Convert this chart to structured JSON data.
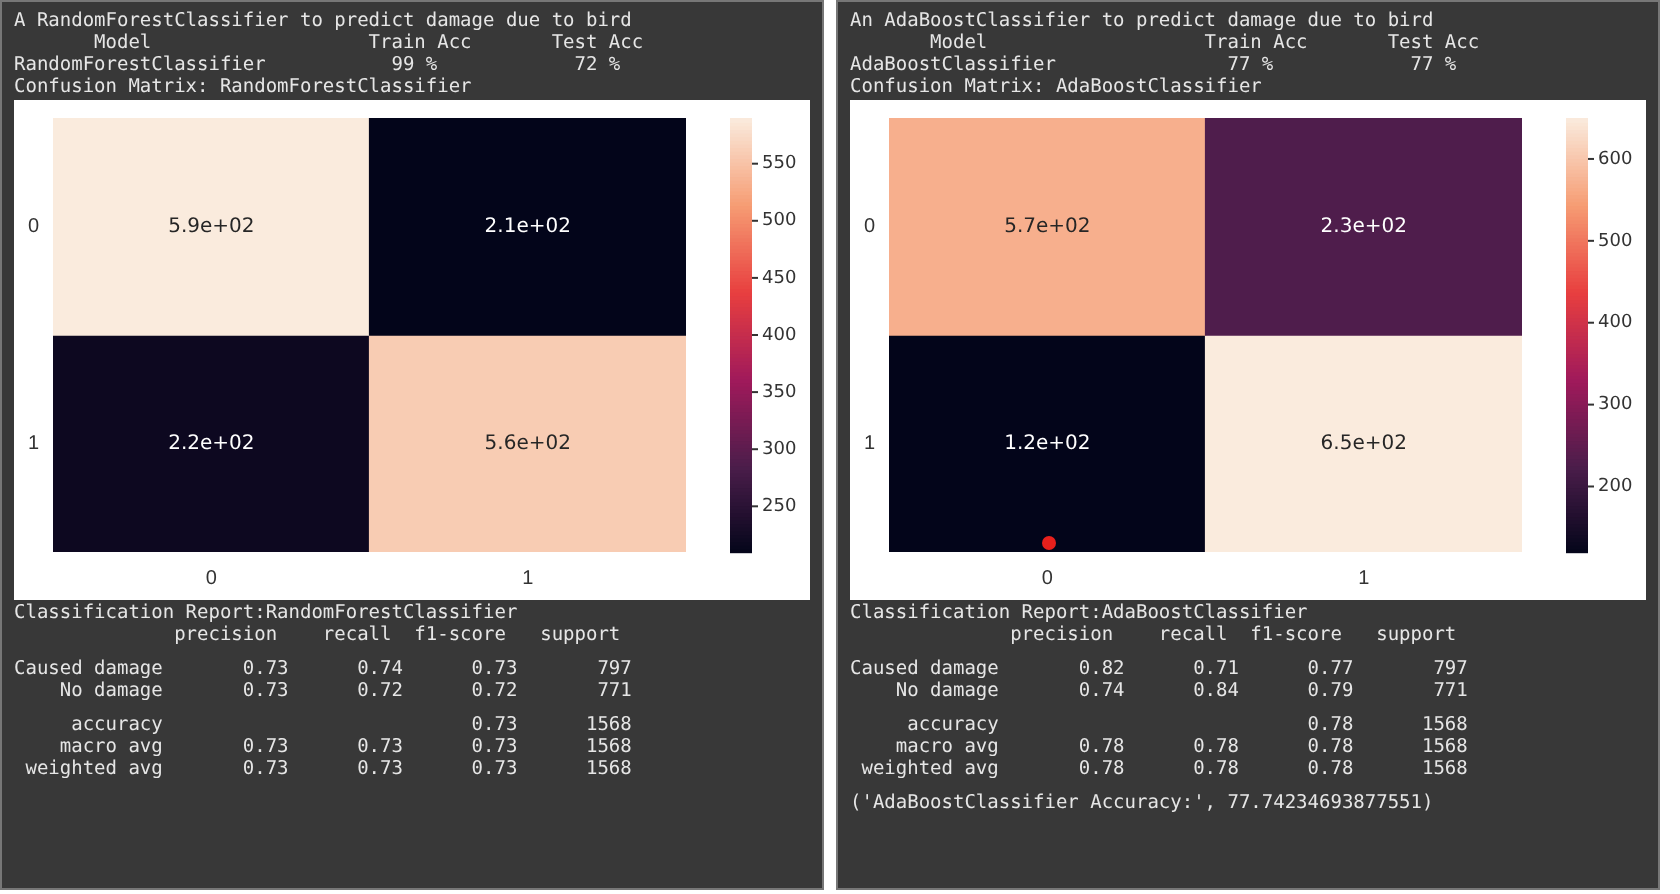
{
  "chart_data": [
    {
      "type": "heatmap",
      "title": "A RandomForestClassifier to predict damage due to bird",
      "subtitle": "       Model                   Train Acc       Test Acc\nRandomForestClassifier           99 %            72 %\nConfusion Matrix: RandomForestClassifier",
      "categories": [
        "0",
        "1"
      ],
      "y_categories": [
        "0",
        "1"
      ],
      "cells": [
        [
          590,
          210
        ],
        [
          220,
          560
        ]
      ],
      "cell_labels": [
        [
          "5.9e+02",
          "2.1e+02"
        ],
        [
          "2.2e+02",
          "5.6e+02"
        ]
      ],
      "clim": [
        210,
        590
      ],
      "cticks": [
        250,
        300,
        350,
        400,
        450,
        500,
        550
      ],
      "annotations": [
        "Classification Report:RandomForestClassifier",
        "              precision    recall  f1-score   support",
        "Caused damage       0.73      0.74      0.73       797",
        "    No damage       0.73      0.72      0.72       771",
        "     accuracy                           0.73      1568",
        "    macro avg       0.73      0.73      0.73      1568",
        " weighted avg       0.73      0.73      0.73      1568"
      ]
    },
    {
      "type": "heatmap",
      "title": "An AdaBoostClassifier to predict damage due to bird",
      "subtitle": "       Model                   Train Acc       Test Acc\nAdaBoostClassifier               77 %            77 %\nConfusion Matrix: AdaBoostClassifier",
      "categories": [
        "0",
        "1"
      ],
      "y_categories": [
        "0",
        "1"
      ],
      "cells": [
        [
          570,
          230
        ],
        [
          120,
          650
        ]
      ],
      "cell_labels": [
        [
          "5.7e+02",
          "2.3e+02"
        ],
        [
          "1.2e+02",
          "6.5e+02"
        ]
      ],
      "clim": [
        120,
        650
      ],
      "cticks": [
        200,
        300,
        400,
        500,
        600
      ],
      "annotations": [
        "Classification Report:AdaBoostClassifier",
        "              precision    recall  f1-score   support",
        "Caused damage       0.82      0.71      0.77       797",
        "    No damage       0.74      0.84      0.79       771",
        "     accuracy                           0.78      1568",
        "    macro avg       0.78      0.78      0.78      1568",
        " weighted avg       0.78      0.78      0.78      1568",
        "('AdaBoostClassifier Accuracy:', 77.74234693877551)"
      ]
    }
  ]
}
